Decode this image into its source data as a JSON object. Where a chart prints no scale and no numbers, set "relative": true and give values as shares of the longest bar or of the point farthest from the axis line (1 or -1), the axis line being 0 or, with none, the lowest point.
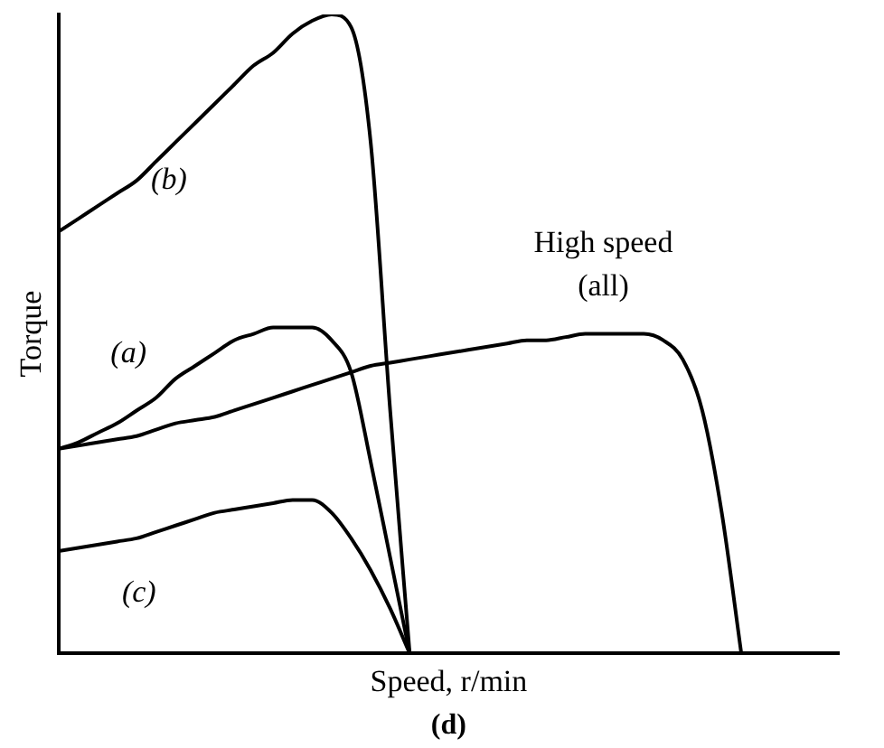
{
  "chart_data": {
    "type": "line",
    "relative": true,
    "xlabel": "Speed, r/min",
    "ylabel": "Torque",
    "annotations": [
      "(d)"
    ],
    "tick_labels": false,
    "grid": false,
    "legend": false,
    "marker": "none",
    "line_style": "solid",
    "categories": [
      null,
      null,
      null,
      null,
      null,
      null,
      null,
      null,
      null,
      null,
      null,
      null,
      null,
      null,
      null,
      null,
      null,
      null,
      null,
      null,
      null,
      null,
      null,
      null,
      null,
      null,
      null,
      null,
      null,
      null,
      null,
      null,
      null,
      null,
      null,
      null,
      null,
      null,
      null,
      null,
      null
    ],
    "series": [
      {
        "name": "(b)",
        "color": "#000000",
        "values": [
          0.66,
          0.68,
          0.7,
          0.72,
          0.74,
          0.77,
          0.8,
          0.83,
          0.86,
          0.89,
          0.92,
          0.94,
          0.97,
          0.99,
          1,
          0.98,
          0.8,
          0.38,
          0,
          null,
          null,
          null,
          null,
          null,
          null,
          null,
          null,
          null,
          null,
          null,
          null,
          null,
          null,
          null,
          null,
          null,
          null,
          null,
          null,
          null,
          null
        ]
      },
      {
        "name": "(a)",
        "color": "#000000",
        "values": [
          0.32,
          0.33,
          0.345,
          0.36,
          0.38,
          0.4,
          0.43,
          0.45,
          0.47,
          0.49,
          0.5,
          0.51,
          0.51,
          0.51,
          0.49,
          0.44,
          0.3,
          0.15,
          0,
          null,
          null,
          null,
          null,
          null,
          null,
          null,
          null,
          null,
          null,
          null,
          null,
          null,
          null,
          null,
          null,
          null,
          null,
          null,
          null,
          null,
          null
        ]
      },
      {
        "name": "(c)",
        "color": "#000000",
        "values": [
          0.16,
          0.165,
          0.17,
          0.175,
          0.18,
          0.19,
          0.2,
          0.21,
          0.22,
          0.225,
          0.23,
          0.235,
          0.24,
          0.24,
          0.22,
          0.18,
          0.13,
          0.07,
          0,
          null,
          null,
          null,
          null,
          null,
          null,
          null,
          null,
          null,
          null,
          null,
          null,
          null,
          null,
          null,
          null,
          null,
          null,
          null,
          null,
          null,
          null
        ]
      },
      {
        "name": "High speed (all)",
        "color": "#000000",
        "values": [
          0.32,
          0.325,
          0.33,
          0.335,
          0.34,
          0.35,
          0.36,
          0.365,
          0.37,
          0.38,
          0.39,
          0.4,
          0.41,
          0.42,
          0.43,
          0.44,
          0.45,
          0.455,
          0.46,
          0.465,
          0.47,
          0.475,
          0.48,
          0.485,
          0.49,
          0.49,
          0.495,
          0.5,
          0.5,
          0.5,
          0.5,
          0.49,
          0.46,
          0.38,
          0.22,
          0,
          null,
          null,
          null,
          null,
          null
        ]
      }
    ]
  }
}
